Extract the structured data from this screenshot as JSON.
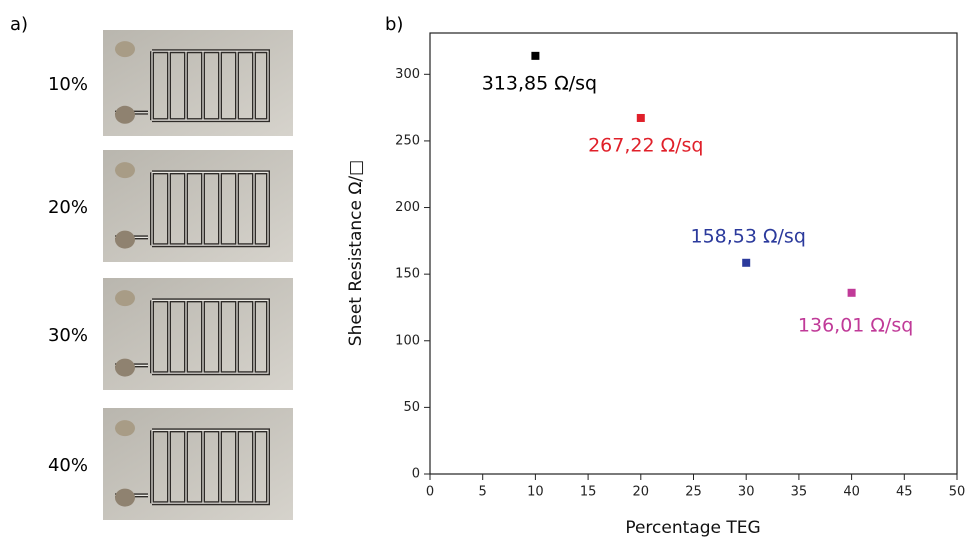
{
  "panel_a": {
    "label": "a)",
    "photo_labels": [
      "10%",
      "20%",
      "30%",
      "40%"
    ]
  },
  "chart_data": {
    "type": "scatter",
    "panel_label": "b)",
    "x_label": "Percentage TEG",
    "y_label": "Sheet Resistance Ω/□",
    "x": [
      10,
      20,
      30,
      40
    ],
    "values": [
      313.85,
      267.22,
      158.53,
      136.01
    ],
    "value_labels": [
      "313,85 Ω/sq",
      "267,22 Ω/sq",
      "158,53 Ω/sq",
      "136,01 Ω/sq"
    ],
    "colors": [
      "#000000",
      "#e0202a",
      "#2b3a9c",
      "#c03a98"
    ],
    "xlim": [
      0,
      50
    ],
    "xticks": [
      0,
      5,
      10,
      15,
      20,
      25,
      30,
      35,
      40,
      45,
      50
    ],
    "ylim": [
      0,
      331
    ],
    "yticks": [
      0,
      50,
      100,
      150,
      200,
      250,
      300
    ]
  }
}
